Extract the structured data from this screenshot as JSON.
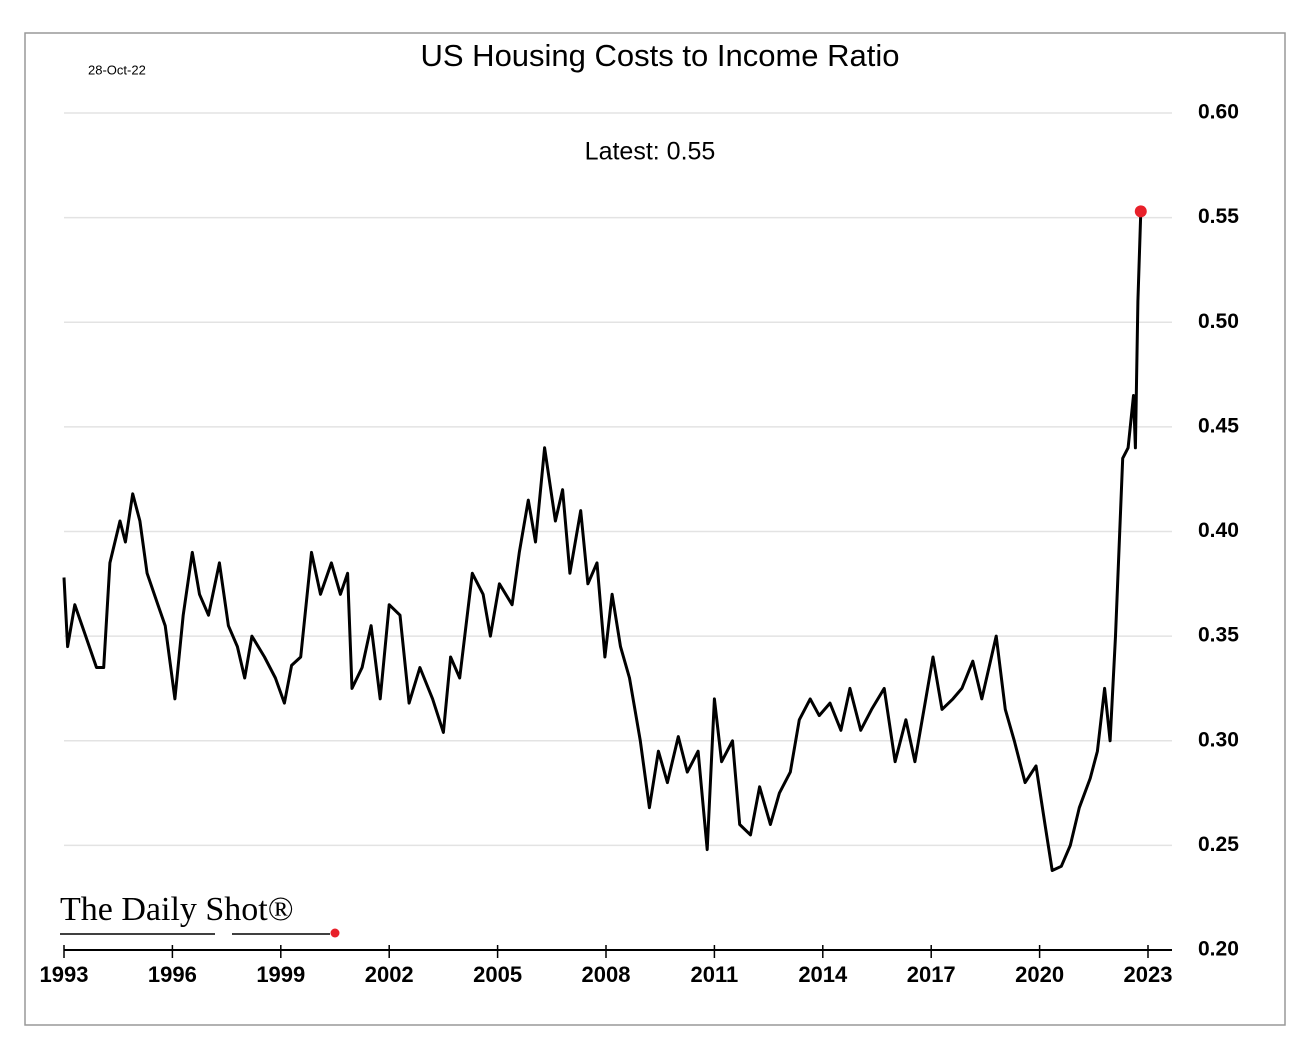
{
  "chart_data": {
    "type": "line",
    "title": "US Housing Costs to Income Ratio",
    "date": "28-Oct-22",
    "annotation": "Latest:  0.55",
    "logo": "The Daily Shot®",
    "x": [
      1993.0,
      1993.1,
      1993.3,
      1993.5,
      1993.7,
      1993.9,
      1994.1,
      1994.27,
      1994.55,
      1994.7,
      1994.9,
      1995.1,
      1995.3,
      1995.6,
      1995.8,
      1996.07,
      1996.3,
      1996.55,
      1996.75,
      1997.0,
      1997.3,
      1997.55,
      1997.8,
      1998.0,
      1998.2,
      1998.55,
      1998.85,
      1999.1,
      1999.3,
      1999.55,
      1999.85,
      2000.1,
      2000.4,
      2000.65,
      2000.85,
      2000.97,
      2001.25,
      2001.5,
      2001.75,
      2002.0,
      2002.3,
      2002.55,
      2002.85,
      2003.2,
      2003.5,
      2003.7,
      2003.95,
      2004.3,
      2004.6,
      2004.8,
      2005.05,
      2005.4,
      2005.6,
      2005.85,
      2006.05,
      2006.3,
      2006.6,
      2006.8,
      2007.0,
      2007.3,
      2007.5,
      2007.75,
      2007.97,
      2008.17,
      2008.4,
      2008.65,
      2008.95,
      2009.2,
      2009.45,
      2009.7,
      2010.0,
      2010.25,
      2010.55,
      2010.8,
      2011.0,
      2011.2,
      2011.5,
      2011.7,
      2012.0,
      2012.25,
      2012.55,
      2012.8,
      2013.1,
      2013.35,
      2013.65,
      2013.9,
      2014.2,
      2014.5,
      2014.75,
      2015.05,
      2015.35,
      2015.7,
      2016.0,
      2016.3,
      2016.55,
      2016.85,
      2017.05,
      2017.3,
      2017.6,
      2017.85,
      2018.15,
      2018.4,
      2018.8,
      2019.05,
      2019.3,
      2019.6,
      2019.9,
      2020.15,
      2020.35,
      2020.6,
      2020.85,
      2021.1,
      2021.4,
      2021.6,
      2021.8,
      2021.95,
      2022.1,
      2022.3,
      2022.45,
      2022.6,
      2022.65,
      2022.72,
      2022.8
    ],
    "series": [
      {
        "name": "Housing costs to income",
        "color": "#000000",
        "marker_color": "#e8202a",
        "values": [
          0.378,
          0.345,
          0.365,
          0.355,
          0.345,
          0.335,
          0.335,
          0.385,
          0.405,
          0.395,
          0.418,
          0.405,
          0.38,
          0.365,
          0.355,
          0.32,
          0.36,
          0.39,
          0.37,
          0.36,
          0.385,
          0.355,
          0.345,
          0.33,
          0.35,
          0.34,
          0.33,
          0.318,
          0.336,
          0.34,
          0.39,
          0.37,
          0.385,
          0.37,
          0.38,
          0.325,
          0.335,
          0.355,
          0.32,
          0.365,
          0.36,
          0.318,
          0.335,
          0.32,
          0.304,
          0.34,
          0.33,
          0.38,
          0.37,
          0.35,
          0.375,
          0.365,
          0.39,
          0.415,
          0.395,
          0.44,
          0.405,
          0.42,
          0.38,
          0.41,
          0.375,
          0.385,
          0.34,
          0.37,
          0.345,
          0.33,
          0.3,
          0.268,
          0.295,
          0.28,
          0.302,
          0.285,
          0.295,
          0.248,
          0.32,
          0.29,
          0.3,
          0.26,
          0.255,
          0.278,
          0.26,
          0.275,
          0.285,
          0.31,
          0.32,
          0.312,
          0.318,
          0.305,
          0.325,
          0.305,
          0.315,
          0.325,
          0.29,
          0.31,
          0.29,
          0.32,
          0.34,
          0.315,
          0.32,
          0.325,
          0.338,
          0.32,
          0.35,
          0.315,
          0.3,
          0.28,
          0.288,
          0.26,
          0.238,
          0.24,
          0.25,
          0.268,
          0.282,
          0.295,
          0.325,
          0.3,
          0.35,
          0.435,
          0.44,
          0.465,
          0.44,
          0.51,
          0.553
        ]
      }
    ],
    "xlim": [
      1993,
      2023
    ],
    "xticks": [
      1993,
      1996,
      1999,
      2002,
      2005,
      2008,
      2011,
      2014,
      2017,
      2020,
      2023
    ],
    "ylim": [
      0.2,
      0.6
    ],
    "yticks": [
      {
        "value": 0.2,
        "label": "0.20"
      },
      {
        "value": 0.25,
        "label": "0.25"
      },
      {
        "value": 0.3,
        "label": "0.30"
      },
      {
        "value": 0.35,
        "label": "0.35"
      },
      {
        "value": 0.4,
        "label": "0.40"
      },
      {
        "value": 0.45,
        "label": "0.45"
      },
      {
        "value": 0.5,
        "label": "0.50"
      },
      {
        "value": 0.55,
        "label": "0.55"
      },
      {
        "value": 0.6,
        "label": "0.60"
      }
    ],
    "grid": true
  }
}
